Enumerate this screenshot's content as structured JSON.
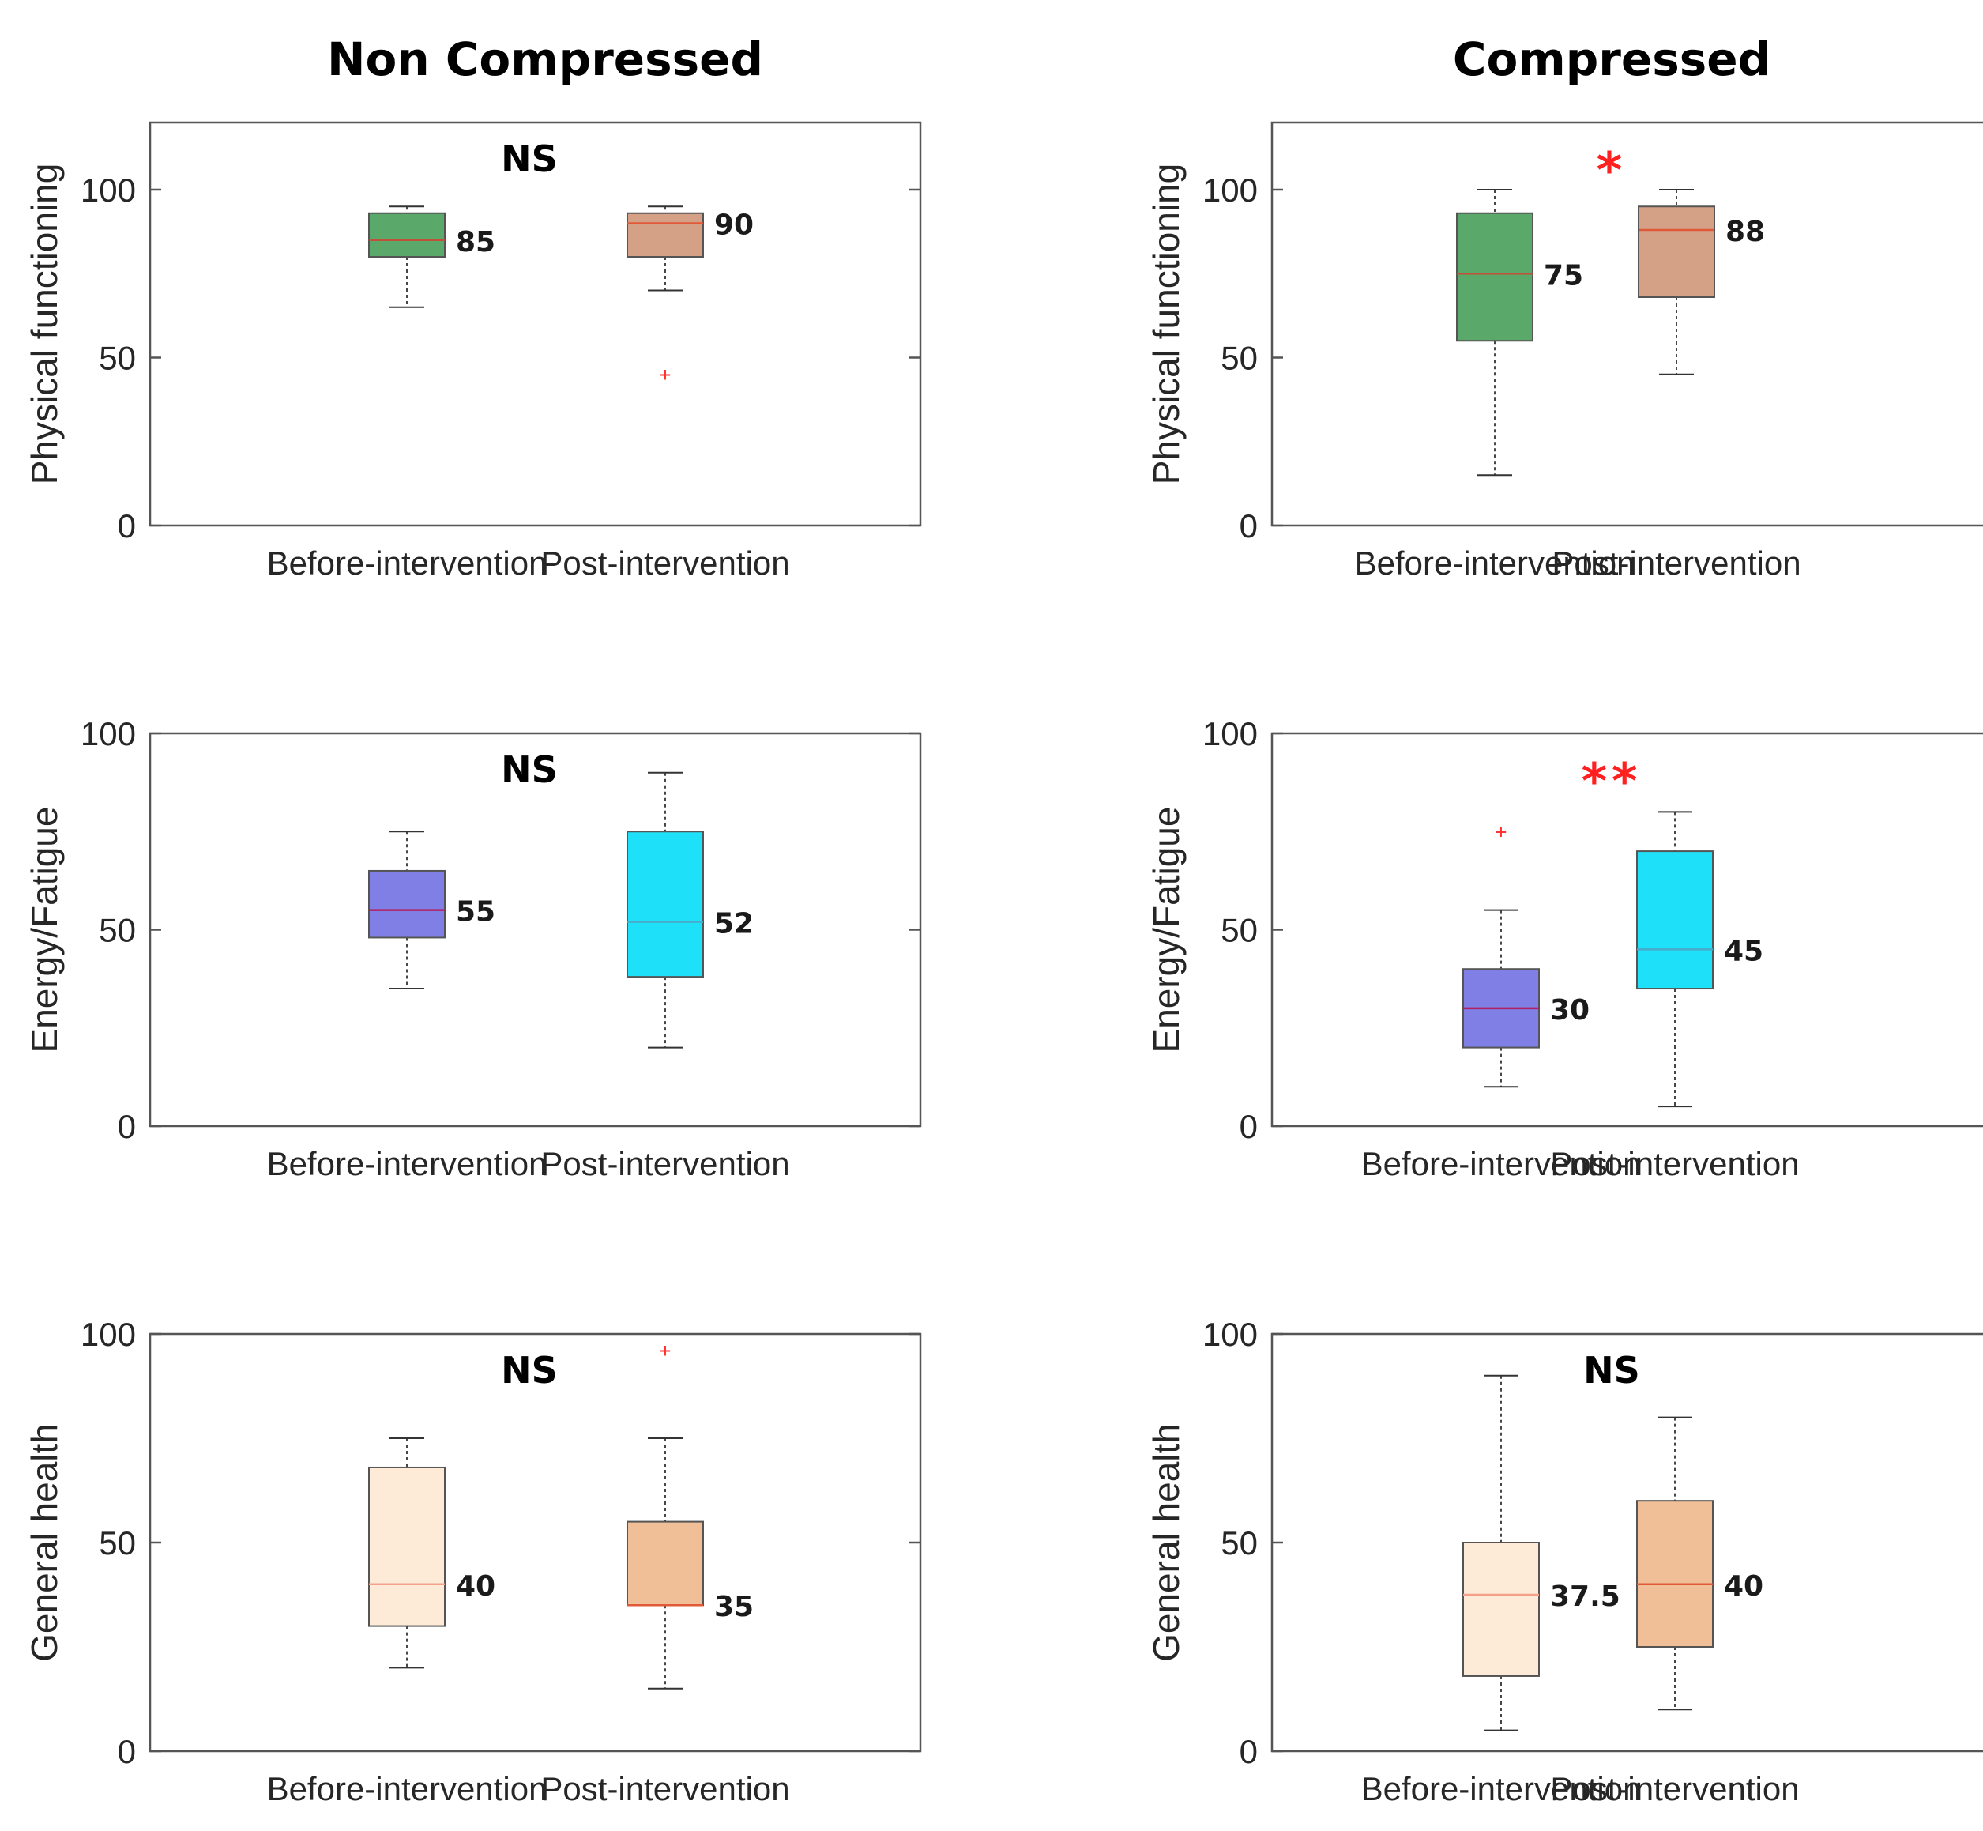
{
  "column_titles": [
    "Non Compressed",
    "Compressed"
  ],
  "chart_data": [
    {
      "type": "box",
      "group": "Non Compressed",
      "ylabel": "Physical functioning",
      "ylim": [
        0,
        120
      ],
      "yticks": [
        0,
        50,
        100
      ],
      "significance": "NS",
      "categories": [
        "Before-intervention",
        "Post-intervention"
      ],
      "boxes": [
        {
          "min": 65,
          "q1": 80,
          "median": 85,
          "q3": 93,
          "max": 95,
          "outliers": [],
          "label": "85",
          "fill": "#5aa86a",
          "median_color": "#c0503a"
        },
        {
          "min": 70,
          "q1": 80,
          "median": 90,
          "q3": 93,
          "max": 95,
          "outliers": [
            45
          ],
          "label": "90",
          "fill": "#d4a186",
          "median_color": "#e05a3a"
        }
      ]
    },
    {
      "type": "box",
      "group": "Compressed",
      "ylabel": "Physical functioning",
      "ylim": [
        0,
        120
      ],
      "yticks": [
        0,
        50,
        100
      ],
      "significance": "*",
      "categories": [
        "Before-intervention",
        "Post-intervention"
      ],
      "boxes": [
        {
          "min": 15,
          "q1": 55,
          "median": 75,
          "q3": 93,
          "max": 100,
          "outliers": [],
          "label": "75",
          "fill": "#5aa86a",
          "median_color": "#c0503a"
        },
        {
          "min": 45,
          "q1": 68,
          "median": 88,
          "q3": 95,
          "max": 100,
          "outliers": [],
          "label": "88",
          "fill": "#d4a186",
          "median_color": "#e05a3a"
        }
      ]
    },
    {
      "type": "box",
      "group": "Non Compressed",
      "ylabel": "Energy/Fatigue",
      "ylim": [
        0,
        100
      ],
      "yticks": [
        0,
        50,
        100
      ],
      "significance": "NS",
      "categories": [
        "Before-intervention",
        "Post-intervention"
      ],
      "boxes": [
        {
          "min": 35,
          "q1": 48,
          "median": 55,
          "q3": 65,
          "max": 75,
          "outliers": [],
          "label": "55",
          "fill": "#7f7fe6",
          "median_color": "#b02060"
        },
        {
          "min": 20,
          "q1": 38,
          "median": 52,
          "q3": 75,
          "max": 90,
          "outliers": [],
          "label": "52",
          "fill": "#1ee0f8",
          "median_color": "#4aa8c8"
        }
      ]
    },
    {
      "type": "box",
      "group": "Compressed",
      "ylabel": "Energy/Fatigue",
      "ylim": [
        0,
        100
      ],
      "yticks": [
        0,
        50,
        100
      ],
      "significance": "**",
      "categories": [
        "Before-intervention",
        "Post-intervention"
      ],
      "boxes": [
        {
          "min": 10,
          "q1": 20,
          "median": 30,
          "q3": 40,
          "max": 55,
          "outliers": [
            75
          ],
          "label": "30",
          "fill": "#7f7fe6",
          "median_color": "#b02060"
        },
        {
          "min": 5,
          "q1": 35,
          "median": 45,
          "q3": 70,
          "max": 80,
          "outliers": [],
          "label": "45",
          "fill": "#1ee0f8",
          "median_color": "#4aa8c8"
        }
      ]
    },
    {
      "type": "box",
      "group": "Non Compressed",
      "ylabel": "General health",
      "ylim": [
        0,
        100
      ],
      "yticks": [
        0,
        50,
        100
      ],
      "significance": "NS",
      "categories": [
        "Before-intervention",
        "Post-intervention"
      ],
      "boxes": [
        {
          "min": 20,
          "q1": 30,
          "median": 40,
          "q3": 68,
          "max": 75,
          "outliers": [],
          "label": "40",
          "fill": "#fdebd8",
          "median_color": "#f4a08a"
        },
        {
          "min": 15,
          "q1": 35,
          "median": 35,
          "q3": 55,
          "max": 75,
          "outliers": [
            96
          ],
          "label": "35",
          "fill": "#f0bf98",
          "median_color": "#e05a3a"
        }
      ]
    },
    {
      "type": "box",
      "group": "Compressed",
      "ylabel": "General health",
      "ylim": [
        0,
        100
      ],
      "yticks": [
        0,
        50,
        100
      ],
      "significance": "NS",
      "categories": [
        "Before-intervention",
        "Post-intervention"
      ],
      "boxes": [
        {
          "min": 5,
          "q1": 18,
          "median": 37.5,
          "q3": 50,
          "max": 90,
          "outliers": [],
          "label": "37.5",
          "fill": "#fdebd8",
          "median_color": "#f4a08a"
        },
        {
          "min": 10,
          "q1": 25,
          "median": 40,
          "q3": 60,
          "max": 80,
          "outliers": [],
          "label": "40",
          "fill": "#f0bf98",
          "median_color": "#e05a3a"
        }
      ]
    }
  ]
}
